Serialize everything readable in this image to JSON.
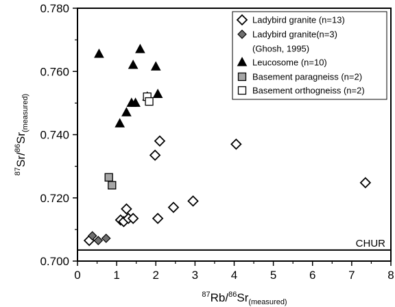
{
  "chart_data": {
    "type": "scatter",
    "xlim": [
      0,
      8
    ],
    "ylim": [
      0.7,
      0.78
    ],
    "x_ticks": [
      "0",
      "1",
      "2",
      "3",
      "4",
      "5",
      "6",
      "7",
      "8"
    ],
    "y_ticks": [
      "0.700",
      "0.720",
      "0.740",
      "0.760",
      "0.780"
    ],
    "xlabel": "87Rb/86Sr(measured)",
    "ylabel": "87Sr/86Sr(measured)",
    "grid": false,
    "legend_position": "top-right",
    "series": [
      {
        "name": "Ladybird granite (n=13)",
        "marker": "diamond-open",
        "color": "#ffffff",
        "x": [
          0.3,
          1.1,
          1.18,
          1.25,
          1.3,
          1.42,
          2.05,
          2.45,
          2.95,
          1.98,
          2.1,
          4.05,
          7.35
        ],
        "y": [
          0.7065,
          0.713,
          0.7125,
          0.7165,
          0.7135,
          0.7135,
          0.7135,
          0.717,
          0.719,
          0.7335,
          0.738,
          0.737,
          0.7248
        ]
      },
      {
        "name": "Ladybird granite(n=3)",
        "name_line2": "(Ghosh, 1995)",
        "marker": "diamond-filled",
        "color": "#707070",
        "x": [
          0.38,
          0.53,
          0.73
        ],
        "y": [
          0.708,
          0.7065,
          0.7072
        ]
      },
      {
        "name": "Leucosome (n=10)",
        "marker": "triangle",
        "color": "#000000",
        "x": [
          0.55,
          1.08,
          1.25,
          1.38,
          1.48,
          1.42,
          1.6,
          1.78,
          2.0,
          2.05
        ],
        "y": [
          0.7655,
          0.7435,
          0.747,
          0.75,
          0.75,
          0.762,
          0.767,
          0.752,
          0.7615,
          0.7528
        ]
      },
      {
        "name": "Basement paragneiss (n=2)",
        "marker": "square-gray",
        "color": "#a6a6a6",
        "x": [
          0.8,
          0.88
        ],
        "y": [
          0.7265,
          0.724
        ]
      },
      {
        "name": "Basement orthogneiss (n=2)",
        "marker": "square-open",
        "color": "#ffffff",
        "x": [
          1.78,
          1.83
        ],
        "y": [
          0.752,
          0.7505
        ]
      }
    ],
    "reference_line": {
      "label": "CHUR",
      "y": 0.7035
    }
  }
}
